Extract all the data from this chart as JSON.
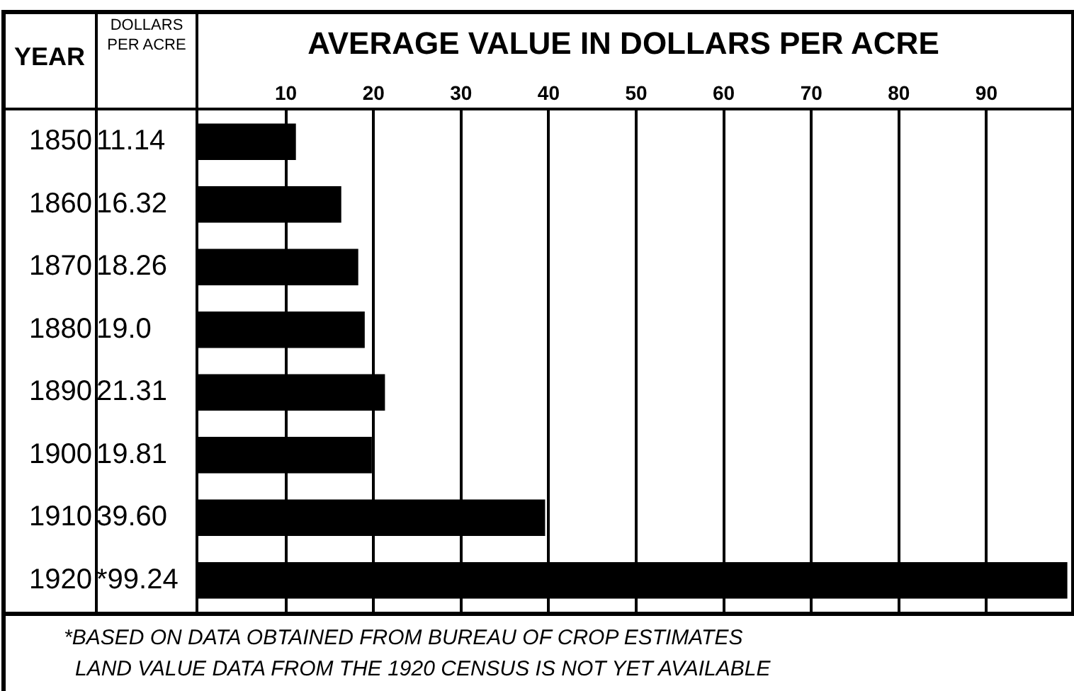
{
  "chart_data": {
    "type": "bar",
    "orientation": "horizontal",
    "title": "AVERAGE VALUE IN DOLLARS PER ACRE",
    "ylabel": "YEAR",
    "categories": [
      "1850",
      "1860",
      "1870",
      "1880",
      "1890",
      "1900",
      "1910",
      "1920"
    ],
    "values": [
      11.14,
      16.32,
      18.26,
      19.0,
      21.31,
      19.81,
      39.6,
      99.24
    ],
    "value_labels": [
      "11.14",
      "16.32",
      "18.26",
      "19.0",
      "21.31",
      "19.81",
      "39.60",
      "*99.24"
    ],
    "color": "#000000",
    "xlim": [
      0,
      100
    ],
    "xticks": [
      10,
      20,
      30,
      40,
      50,
      60,
      70,
      80,
      90
    ],
    "grid": "x",
    "legend": false,
    "annotations": [
      "DOLLARS PER ACRE",
      "*BASED ON DATA OBTAINED FROM BUREAU OF CROP ESTIMATES",
      "LAND VALUE DATA FROM THE 1920 CENSUS IS NOT YET AVAILABLE"
    ]
  }
}
